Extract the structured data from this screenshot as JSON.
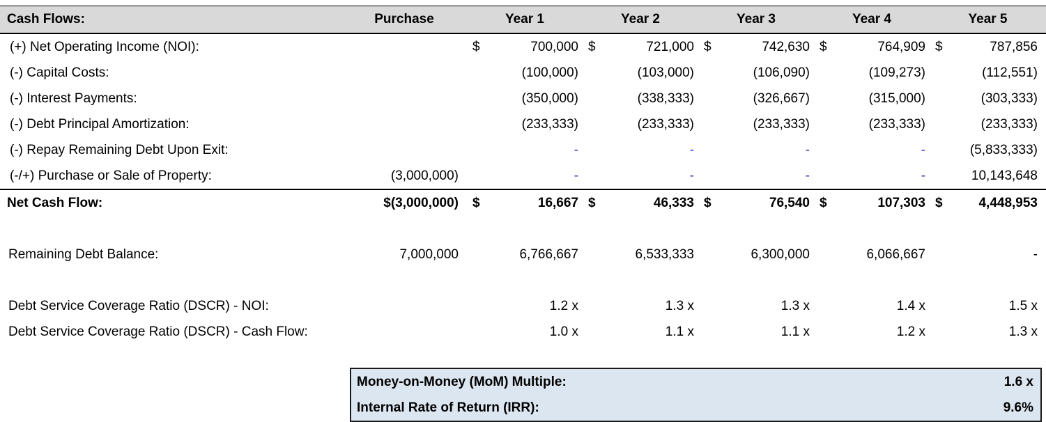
{
  "colors": {
    "header_bg": "#d9d9d9",
    "summary_box_bg": "#dce6f1",
    "dash_blue": "#3333cc",
    "border": "#000000"
  },
  "cashflow": {
    "title": "Cash Flows:",
    "col_headers": [
      "Purchase",
      "Year 1",
      "Year 2",
      "Year 3",
      "Year 4",
      "Year 5"
    ],
    "rows": [
      {
        "label": "(+) Net Operating Income (NOI):",
        "cells": [
          {
            "d": "$",
            "v": "700,000"
          },
          {
            "d": "$",
            "v": "721,000"
          },
          {
            "d": "$",
            "v": "742,630"
          },
          {
            "d": "$",
            "v": "764,909"
          },
          {
            "d": "$",
            "v": "787,856"
          }
        ]
      },
      {
        "label": "(-) Capital Costs:",
        "cells": [
          {
            "v": "(100,000)"
          },
          {
            "v": "(103,000)"
          },
          {
            "v": "(106,090)"
          },
          {
            "v": "(109,273)"
          },
          {
            "v": "(112,551)"
          }
        ]
      },
      {
        "label": "(-) Interest Payments:",
        "cells": [
          {
            "v": "(350,000)"
          },
          {
            "v": "(338,333)"
          },
          {
            "v": "(326,667)"
          },
          {
            "v": "(315,000)"
          },
          {
            "v": "(303,333)"
          }
        ]
      },
      {
        "label": "(-) Debt Principal Amortization:",
        "cells": [
          {
            "v": "(233,333)"
          },
          {
            "v": "(233,333)"
          },
          {
            "v": "(233,333)"
          },
          {
            "v": "(233,333)"
          },
          {
            "v": "(233,333)"
          }
        ]
      },
      {
        "label": "(-) Repay Remaining Debt Upon Exit:",
        "cells": [
          {
            "v": "-"
          },
          {
            "v": "-"
          },
          {
            "v": "-"
          },
          {
            "v": "-"
          },
          {
            "v": "(5,833,333)"
          }
        ]
      },
      {
        "label": "(-/+) Purchase or Sale of Property:",
        "purchase": "(3,000,000)",
        "cells": [
          {
            "v": "-"
          },
          {
            "v": "-"
          },
          {
            "v": "-"
          },
          {
            "v": "-"
          },
          {
            "v": "10,143,648"
          }
        ]
      }
    ],
    "total_row": {
      "label": "Net Cash Flow:",
      "purchase": "$(3,000,000)",
      "cells": [
        {
          "d": "$",
          "v": "16,667"
        },
        {
          "d": "$",
          "v": "46,333"
        },
        {
          "d": "$",
          "v": "76,540"
        },
        {
          "d": "$",
          "v": "107,303"
        },
        {
          "d": "$",
          "v": "4,448,953"
        }
      ]
    }
  },
  "debt_balance": {
    "label": "Remaining Debt Balance:",
    "purchase": "7,000,000",
    "values": [
      "6,766,667",
      "6,533,333",
      "6,300,000",
      "6,066,667",
      "-"
    ]
  },
  "dscr": [
    {
      "label": "Debt Service Coverage Ratio (DSCR) - NOI:",
      "values": [
        "1.2 x",
        "1.3 x",
        "1.3 x",
        "1.4 x",
        "1.5 x"
      ]
    },
    {
      "label": "Debt Service Coverage Ratio (DSCR) - Cash Flow:",
      "values": [
        "1.0 x",
        "1.1 x",
        "1.1 x",
        "1.2 x",
        "1.3 x"
      ]
    }
  ],
  "summary": {
    "rows": [
      {
        "label": "Money-on-Money (MoM) Multiple:",
        "value": "1.6 x"
      },
      {
        "label": "Internal Rate of Return  (IRR):",
        "value": "9.6%"
      }
    ]
  }
}
